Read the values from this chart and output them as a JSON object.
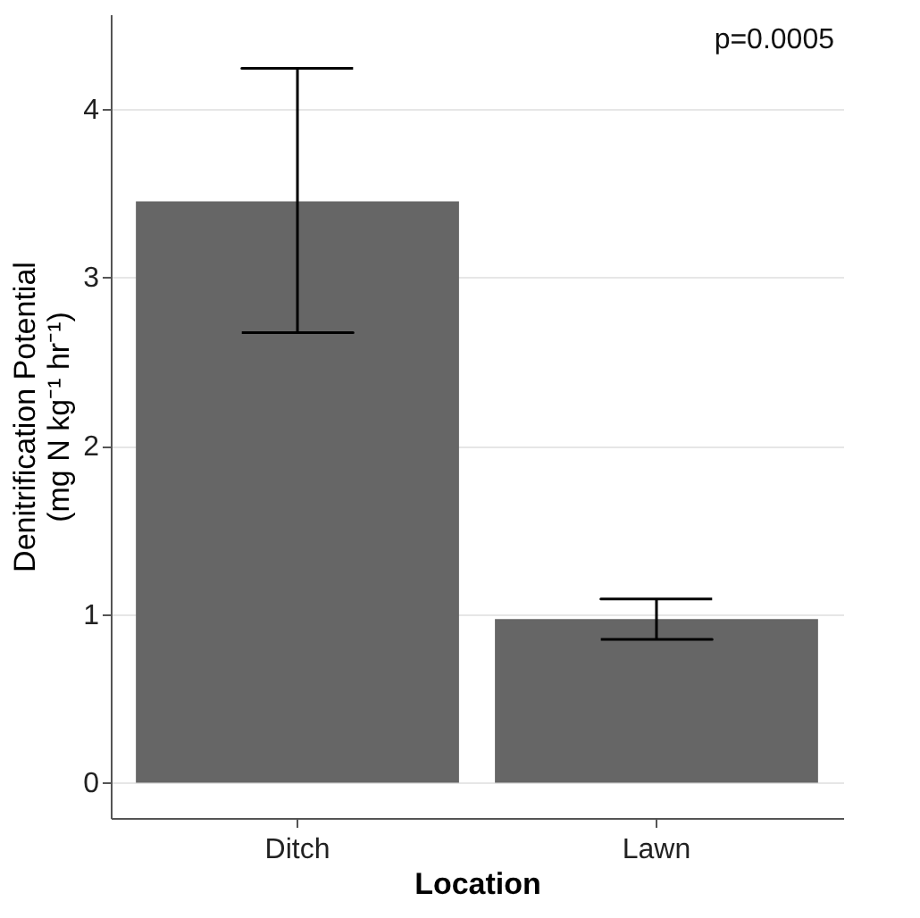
{
  "chart_data": {
    "type": "bar",
    "categories": [
      "Ditch",
      "Lawn"
    ],
    "values": [
      3.45,
      0.97
    ],
    "errors": [
      [
        2.67,
        4.24
      ],
      [
        0.85,
        1.09
      ]
    ],
    "color": "#666666",
    "xlabel": "Location",
    "ylabel": "Denitrification Potential\n(mg N kg⁻¹ hr⁻¹)",
    "ylim": [
      -0.21,
      4.56
    ],
    "yticks": [
      0,
      1,
      2,
      3,
      4
    ],
    "grid": "y",
    "annotations": [
      "p=0.0005"
    ]
  }
}
